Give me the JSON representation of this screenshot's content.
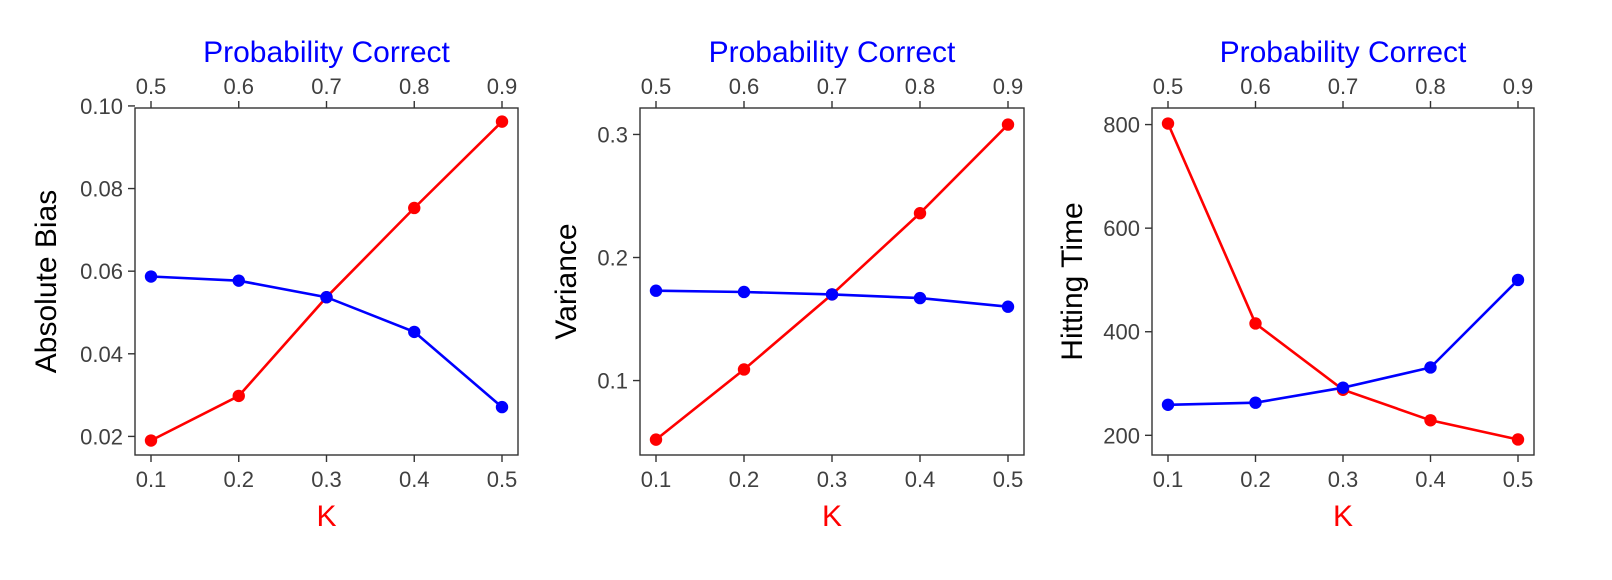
{
  "colors": {
    "top_axis_series": "#0000ff",
    "bottom_axis_series": "#ff0000",
    "frame": "#333333"
  },
  "chart_data": [
    {
      "type": "line",
      "x_bottom": {
        "label": "K",
        "ticks": [
          0.1,
          0.2,
          0.3,
          0.4,
          0.5
        ],
        "tick_labels": [
          "0.1",
          "0.2",
          "0.3",
          "0.4",
          "0.5"
        ],
        "range": [
          0.1,
          0.5
        ]
      },
      "x_top": {
        "label": "Probability Correct",
        "ticks": [
          0.5,
          0.6,
          0.7,
          0.8,
          0.9
        ],
        "tick_labels": [
          "0.5",
          "0.6",
          "0.7",
          "0.8",
          "0.9"
        ],
        "range": [
          0.5,
          0.9
        ]
      },
      "y": {
        "label": "Absolute Bias",
        "ticks": [
          0.02,
          0.04,
          0.06,
          0.08,
          0.1
        ],
        "tick_labels": [
          "0.02",
          "0.04",
          "0.06",
          "0.08",
          "0.10"
        ],
        "range": [
          0.0155,
          0.0995
        ]
      },
      "series": [
        {
          "axis": "bottom",
          "color": "#ff0000",
          "x": [
            0.1,
            0.2,
            0.3,
            0.4,
            0.5
          ],
          "y": [
            0.019,
            0.0298,
            0.0537,
            0.0753,
            0.0962
          ]
        },
        {
          "axis": "top",
          "color": "#0000ff",
          "x": [
            0.5,
            0.6,
            0.7,
            0.8,
            0.9
          ],
          "y": [
            0.0587,
            0.0577,
            0.0537,
            0.0453,
            0.0271
          ]
        }
      ]
    },
    {
      "type": "line",
      "x_bottom": {
        "label": "K",
        "ticks": [
          0.1,
          0.2,
          0.3,
          0.4,
          0.5
        ],
        "tick_labels": [
          "0.1",
          "0.2",
          "0.3",
          "0.4",
          "0.5"
        ],
        "range": [
          0.1,
          0.5
        ]
      },
      "x_top": {
        "label": "Probability Correct",
        "ticks": [
          0.5,
          0.6,
          0.7,
          0.8,
          0.9
        ],
        "tick_labels": [
          "0.5",
          "0.6",
          "0.7",
          "0.8",
          "0.9"
        ],
        "range": [
          0.5,
          0.9
        ]
      },
      "y": {
        "label": "Variance",
        "ticks": [
          0.1,
          0.2,
          0.3
        ],
        "tick_labels": [
          "0.1",
          "0.2",
          "0.3"
        ],
        "range": [
          0.0395,
          0.3215
        ]
      },
      "series": [
        {
          "axis": "bottom",
          "color": "#ff0000",
          "x": [
            0.1,
            0.2,
            0.3,
            0.4,
            0.5
          ],
          "y": [
            0.052,
            0.109,
            0.17,
            0.236,
            0.308
          ]
        },
        {
          "axis": "top",
          "color": "#0000ff",
          "x": [
            0.5,
            0.6,
            0.7,
            0.8,
            0.9
          ],
          "y": [
            0.173,
            0.172,
            0.17,
            0.167,
            0.16
          ]
        }
      ]
    },
    {
      "type": "line",
      "x_bottom": {
        "label": "K",
        "ticks": [
          0.1,
          0.2,
          0.3,
          0.4,
          0.5
        ],
        "tick_labels": [
          "0.1",
          "0.2",
          "0.3",
          "0.4",
          "0.5"
        ],
        "range": [
          0.1,
          0.5
        ]
      },
      "x_top": {
        "label": "Probability Correct",
        "ticks": [
          0.5,
          0.6,
          0.7,
          0.8,
          0.9
        ],
        "tick_labels": [
          "0.5",
          "0.6",
          "0.7",
          "0.8",
          "0.9"
        ],
        "range": [
          0.5,
          0.9
        ]
      },
      "y": {
        "label": "Hitting Time",
        "ticks": [
          200,
          400,
          600,
          800
        ],
        "tick_labels": [
          "200",
          "400",
          "600",
          "800"
        ],
        "range": [
          162,
          832
        ]
      },
      "series": [
        {
          "axis": "bottom",
          "color": "#ff0000",
          "x": [
            0.1,
            0.2,
            0.3,
            0.4,
            0.5
          ],
          "y": [
            802,
            416,
            288,
            229,
            192
          ]
        },
        {
          "axis": "top",
          "color": "#0000ff",
          "x": [
            0.5,
            0.6,
            0.7,
            0.8,
            0.9
          ],
          "y": [
            259,
            263,
            292,
            331,
            500
          ]
        }
      ]
    }
  ]
}
